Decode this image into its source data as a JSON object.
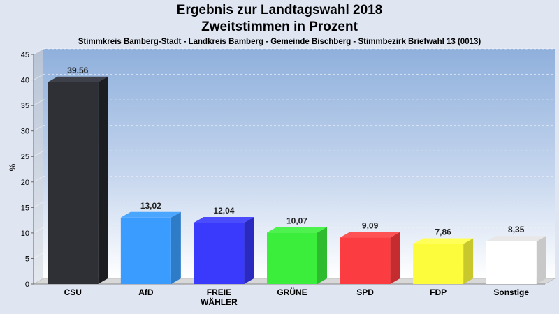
{
  "chart_data": {
    "type": "bar",
    "title": "Ergebnis zur Landtagswahl 2018",
    "title2": "Zweitstimmen in Prozent",
    "subtitle": "Stimmkreis Bamberg-Stadt - Landkreis Bamberg - Gemeinde Bischberg - Stimmbezirk Briefwahl 13 (0013)",
    "ylabel": "%",
    "ylim": [
      0,
      45
    ],
    "yticks": [
      0,
      5,
      10,
      15,
      20,
      25,
      30,
      35,
      40,
      45
    ],
    "grid": true,
    "categories": [
      [
        "CSU"
      ],
      [
        "AfD"
      ],
      [
        "FREIE",
        "WÄHLER"
      ],
      [
        "GRÜNE"
      ],
      [
        "SPD"
      ],
      [
        "FDP"
      ],
      [
        "Sonstige"
      ]
    ],
    "values": [
      39.56,
      13.02,
      12.04,
      10.07,
      9.09,
      7.86,
      8.35
    ],
    "value_labels": [
      "39,56",
      "13,02",
      "12,04",
      "10,07",
      "9,09",
      "7,86",
      "8,35"
    ],
    "colors": [
      "#2e3036",
      "#3b9cff",
      "#3a3afc",
      "#3cee3c",
      "#fb3c40",
      "#fcfc3c",
      "#ffffff"
    ],
    "side_colors": [
      "#1c1d21",
      "#2e7cc8",
      "#2a2ac0",
      "#2ebb2e",
      "#c42c30",
      "#c8c82c",
      "#c8c8c8"
    ],
    "top_colors": [
      "#3d4048",
      "#4aa6ff",
      "#4c4cff",
      "#4ef24e",
      "#ff5254",
      "#ffff58",
      "#e8e8e8"
    ]
  }
}
